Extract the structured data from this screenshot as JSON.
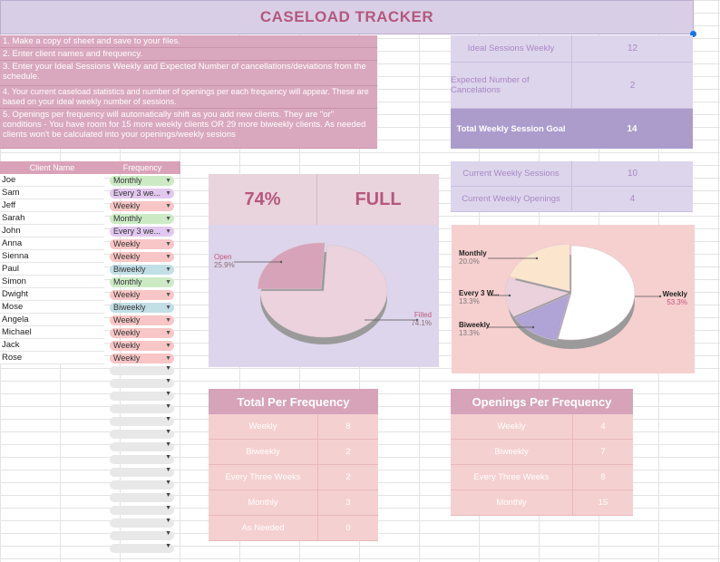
{
  "title": "CASELOAD TRACKER",
  "instructions": [
    "1. Make a copy of sheet and save to your files.",
    "2. Enter client names and frequency.",
    "3. Enter your Ideal Sessions Weekly and Expected Number of cancellations/deviations from the schedule.",
    "4. Your current caseload statistics and number of openings per each frequency will appear. These are based on your ideal weekly number of sessions.",
    "5. Openings per frequency will automatically shift as you add new clients. They are \"or\" conditions - You have room for 15 more weekly clients OR 29 more biweekly clients. As needed clients won't be calculated into your openings/weekly sesions"
  ],
  "settings": {
    "ideal_label": "Ideal Sessions Weekly",
    "ideal_value": "12",
    "cancel_label": "Expected Number of Cancelations",
    "cancel_value": "2",
    "goal_label": "Total Weekly Session Goal",
    "goal_value": "14"
  },
  "current": {
    "sessions_label": "Current Weekly Sessions",
    "sessions_value": "10",
    "openings_label": "Current Weekly Openings",
    "openings_value": "4"
  },
  "clients": {
    "name_header": "Client Name",
    "freq_header": "Frequency",
    "rows": [
      {
        "name": "Joe",
        "freq": "Monthly"
      },
      {
        "name": "Sam",
        "freq": "Every 3 we..."
      },
      {
        "name": "Jeff",
        "freq": "Weekly"
      },
      {
        "name": "Sarah",
        "freq": "Monthly"
      },
      {
        "name": "John",
        "freq": "Every 3 we..."
      },
      {
        "name": "Anna",
        "freq": "Weekly"
      },
      {
        "name": "Sienna",
        "freq": "Weekly"
      },
      {
        "name": "Paul",
        "freq": "Biweekly"
      },
      {
        "name": "Simon",
        "freq": "Monthly"
      },
      {
        "name": "Dwight",
        "freq": "Weekly"
      },
      {
        "name": "Mose",
        "freq": "Biweekly"
      },
      {
        "name": "Angela",
        "freq": "Weekly"
      },
      {
        "name": "Michael",
        "freq": "Weekly"
      },
      {
        "name": "Jack",
        "freq": "Weekly"
      },
      {
        "name": "Rose",
        "freq": "Weekly"
      }
    ],
    "chip_colors": {
      "Monthly": "#ccebc5",
      "Every 3 we...": "#e2c8f0",
      "Weekly": "#f8c6c6",
      "Biweekly": "#c3dfe6"
    },
    "empty_dropdowns": 15
  },
  "capacity": {
    "percent": "74%",
    "status": "FULL"
  },
  "totals": {
    "header": "Total Per Frequency",
    "rows": [
      {
        "label": "Weekly",
        "value": "8"
      },
      {
        "label": "Biweekly",
        "value": "2"
      },
      {
        "label": "Every Three Weeks",
        "value": "2"
      },
      {
        "label": "Monthly",
        "value": "3"
      },
      {
        "label": "As Needed",
        "value": "0"
      }
    ]
  },
  "openings": {
    "header": "Openings Per Frequency",
    "rows": [
      {
        "label": "Weekly",
        "value": "4"
      },
      {
        "label": "Biweekly",
        "value": "7"
      },
      {
        "label": "Every Three Weeks",
        "value": "8"
      },
      {
        "label": "Monthly",
        "value": "15"
      }
    ]
  },
  "chart_data": [
    {
      "type": "pie",
      "title": "",
      "labels": [
        "Open",
        "Filled"
      ],
      "values": [
        25.9,
        74.1
      ],
      "display": [
        "25.9%",
        "74.1%"
      ],
      "colors": [
        "#d6a3b9",
        "#ebd2dc"
      ]
    },
    {
      "type": "pie",
      "title": "",
      "labels": [
        "Weekly",
        "Every 3 W...",
        "Biweekly",
        "Monthly"
      ],
      "values": [
        53.3,
        13.3,
        13.3,
        20.0
      ],
      "display": [
        "53.3%",
        "13.3%",
        "13.3%",
        "20.0%"
      ],
      "colors": [
        "#ffffff",
        "#b0a3d5",
        "#ead1dc",
        "#fce5cd"
      ]
    }
  ]
}
